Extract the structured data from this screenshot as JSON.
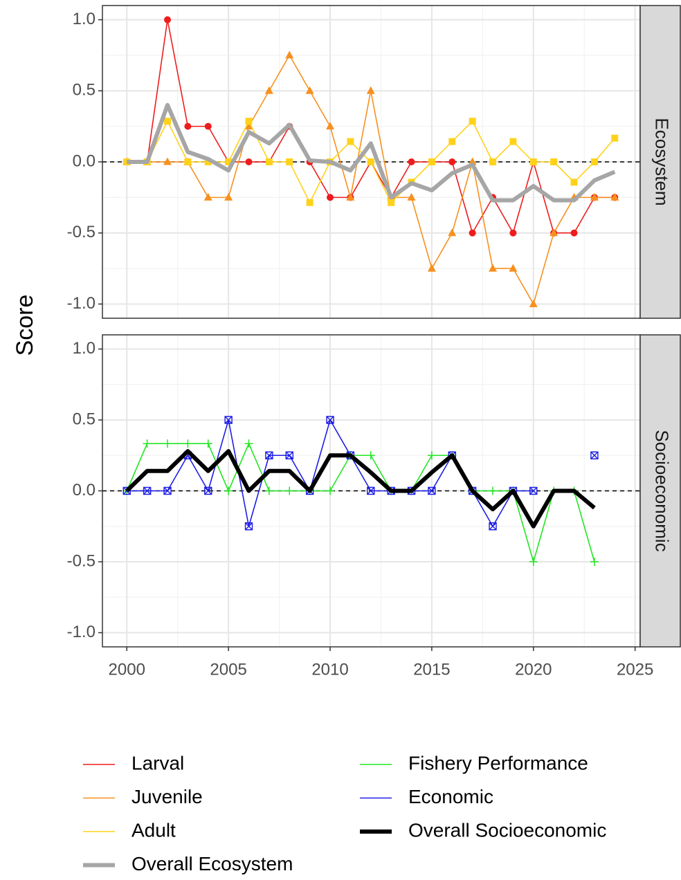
{
  "ylabel": "Score",
  "chart_data": [
    {
      "type": "line",
      "strip": "Ecosystem",
      "hline": 0,
      "x": [
        2000,
        2001,
        2002,
        2003,
        2004,
        2005,
        2006,
        2007,
        2008,
        2009,
        2010,
        2011,
        2012,
        2013,
        2014,
        2015,
        2016,
        2017,
        2018,
        2019,
        2020,
        2021,
        2022,
        2023,
        2024
      ],
      "xlim": [
        1998.8,
        2025.25
      ],
      "ylim": [
        -1.1,
        1.1
      ],
      "yticks": [
        {
          "value": -1,
          "label": "-1.0"
        },
        -0.5,
        {
          "value": 0,
          "label": "0.0"
        },
        0.5,
        {
          "value": 1,
          "label": "1.0"
        }
      ],
      "grid": true,
      "series": [
        {
          "name": "Larval",
          "color": "#ee1c1c",
          "marker": "circle",
          "linewidth": 1.6,
          "values": [
            0,
            0,
            1,
            0.25,
            0.25,
            0,
            0,
            0,
            0.25,
            0,
            -0.25,
            -0.25,
            0,
            -0.25,
            0,
            0,
            0,
            -0.5,
            -0.25,
            -0.5,
            0,
            -0.5,
            -0.5,
            -0.25,
            -0.25
          ]
        },
        {
          "name": "Juvenile",
          "color": "#f7901e",
          "marker": "triangle",
          "linewidth": 1.6,
          "values": [
            0,
            0,
            0,
            0,
            -0.25,
            -0.25,
            0.25,
            0.5,
            0.75,
            0.5,
            0.25,
            -0.25,
            0.5,
            -0.25,
            -0.25,
            -0.75,
            -0.5,
            0,
            -0.75,
            -0.75,
            -1,
            -0.5,
            -0.25,
            -0.25,
            -0.25
          ]
        },
        {
          "name": "Adult",
          "color": "#ffd21a",
          "marker": "square",
          "linewidth": 1.6,
          "values": [
            0,
            0,
            0.286,
            0,
            0,
            0,
            0.286,
            0,
            0,
            -0.286,
            0,
            0.143,
            0,
            -0.286,
            -0.143,
            0,
            0.143,
            0.286,
            0,
            0.143,
            0,
            0,
            -0.143,
            0,
            0.167
          ]
        },
        {
          "name": "Overall Ecosystem",
          "color": "#a6a6a6",
          "marker": "none",
          "linewidth": 6,
          "values": [
            0,
            0,
            0.4,
            0.07,
            0.02,
            -0.06,
            0.21,
            0.13,
            0.26,
            0.01,
            0,
            -0.06,
            0.13,
            -0.25,
            -0.15,
            -0.2,
            -0.08,
            -0.02,
            -0.27,
            -0.27,
            -0.17,
            -0.27,
            -0.27,
            -0.13,
            -0.07
          ]
        }
      ]
    },
    {
      "type": "line",
      "strip": "Socioeconomic",
      "hline": 0,
      "x": [
        2000,
        2001,
        2002,
        2003,
        2004,
        2005,
        2006,
        2007,
        2008,
        2009,
        2010,
        2011,
        2012,
        2013,
        2014,
        2015,
        2016,
        2017,
        2018,
        2019,
        2020,
        2021,
        2022,
        2023
      ],
      "xlim": [
        1998.8,
        2025.25
      ],
      "ylim": [
        -1.1,
        1.1
      ],
      "xticks": [
        2000,
        2005,
        2010,
        2015,
        2020,
        2025
      ],
      "yticks": [
        {
          "value": -1,
          "label": "-1.0"
        },
        -0.5,
        {
          "value": 0,
          "label": "0.0"
        },
        0.5,
        {
          "value": 1,
          "label": "1.0"
        }
      ],
      "grid": true,
      "series": [
        {
          "name": "Fishery Performance",
          "color": "#22e622",
          "marker": "plus",
          "linewidth": 1.6,
          "values": [
            0,
            0.333,
            0.333,
            0.333,
            0.333,
            0,
            0.333,
            0,
            0,
            0,
            0,
            0.25,
            0.25,
            0,
            0,
            0.25,
            0.25,
            0,
            0,
            0,
            -0.5,
            0,
            0,
            -0.5
          ]
        },
        {
          "name": "Economic",
          "color": "#1c1ce6",
          "marker": "square-cross",
          "linewidth": 1.6,
          "values": [
            0,
            0,
            0,
            0.25,
            0,
            0.5,
            -0.25,
            0.25,
            0.25,
            0,
            0.5,
            0.25,
            0,
            0,
            0,
            0,
            0.25,
            0,
            -0.25,
            0,
            0,
            null,
            null,
            0.25
          ]
        },
        {
          "name": "Overall Socioeconomic",
          "color": "#000000",
          "marker": "none",
          "linewidth": 6,
          "values": [
            0,
            0.14,
            0.14,
            0.28,
            0.14,
            0.28,
            0,
            0.14,
            0.14,
            0,
            0.25,
            0.25,
            0.13,
            0,
            0,
            0.13,
            0.25,
            0,
            -0.13,
            0,
            -0.25,
            0,
            0,
            -0.12
          ]
        }
      ]
    }
  ]
}
